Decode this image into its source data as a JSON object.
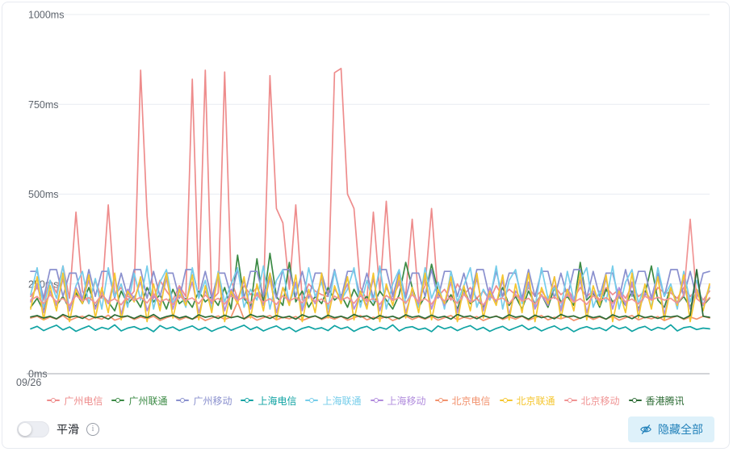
{
  "controls": {
    "smooth_label": "平滑",
    "smooth_on": false,
    "hide_all_label": "隐藏全部"
  },
  "icons": {
    "info_glyph": "i",
    "hide_icon": "eye-invisible-icon"
  },
  "button_colors": {
    "hide_all_bg": "#def1fa",
    "hide_all_text": "#2482ba"
  },
  "chart_data": {
    "type": "line",
    "title": "",
    "smooth": false,
    "grid": true,
    "legend_position": "bottom",
    "ylim": [
      0,
      1000
    ],
    "y_ticks": [
      {
        "label": "0ms",
        "value": 0
      },
      {
        "label": "250ms",
        "value": 250
      },
      {
        "label": "500ms",
        "value": 500
      },
      {
        "label": "750ms",
        "value": 750
      },
      {
        "label": "1000ms",
        "value": 1000
      }
    ],
    "x_first_tick_label": "09/26",
    "unit": "ms",
    "series": [
      {
        "key": "gz-telecom",
        "name": "广州电信",
        "color": "#ee8c8c",
        "values": [
          215,
          240,
          205,
          260,
          225,
          300,
          210,
          450,
          230,
          195,
          260,
          210,
          470,
          220,
          240,
          205,
          230,
          845,
          440,
          210,
          260,
          230,
          205,
          245,
          215,
          820,
          235,
          845,
          205,
          225,
          840,
          260,
          210,
          245,
          220,
          240,
          205,
          830,
          460,
          420,
          235,
          470,
          205,
          250,
          230,
          220,
          215,
          838,
          850,
          500,
          460,
          240,
          205,
          450,
          225,
          480,
          215,
          250,
          220,
          430,
          205,
          245,
          460,
          215,
          235,
          205,
          250,
          220,
          240,
          210,
          230,
          205,
          245,
          215,
          235,
          220,
          205,
          240,
          215,
          230,
          205,
          245,
          220,
          235,
          210,
          240,
          215,
          230,
          205,
          240,
          220,
          235,
          210,
          245,
          215,
          230,
          205,
          240,
          225,
          225,
          210,
          240,
          215,
          235,
          205,
          230
        ]
      },
      {
        "key": "gz-unicom",
        "name": "广州联通",
        "color": "#3b8a44",
        "values": [
          185,
          210,
          175,
          230,
          190,
          215,
          180,
          225,
          195,
          240,
          185,
          220,
          200,
          175,
          230,
          195,
          215,
          185,
          240,
          200,
          220,
          180,
          235,
          195,
          210,
          185,
          230,
          200,
          215,
          190,
          240,
          180,
          330,
          210,
          185,
          320,
          195,
          335,
          215,
          190,
          310,
          200,
          230,
          185,
          215,
          195,
          240,
          205,
          220,
          185,
          235,
          200,
          215,
          190,
          230,
          205,
          180,
          220,
          310,
          240,
          185,
          215,
          305,
          230,
          190,
          220,
          180,
          235,
          195,
          210,
          185,
          225,
          200,
          240,
          190,
          215,
          180,
          230,
          195,
          220,
          185,
          240,
          200,
          215,
          190,
          310,
          205,
          225,
          185,
          235,
          200,
          215,
          190,
          230,
          180,
          220,
          300,
          205,
          185,
          240,
          195,
          215,
          185,
          230,
          190,
          210
        ]
      },
      {
        "key": "gz-mobile",
        "name": "广州移动",
        "color": "#8a90ce",
        "values": [
          285,
          285,
          210,
          290,
          290,
          215,
          280,
          280,
          205,
          290,
          215,
          285,
          285,
          210,
          280,
          215,
          290,
          290,
          210,
          285,
          215,
          280,
          280,
          210,
          290,
          290,
          215,
          285,
          210,
          280,
          280,
          215,
          290,
          210,
          285,
          285,
          215,
          280,
          210,
          290,
          290,
          215,
          285,
          210,
          280,
          280,
          215,
          290,
          210,
          285,
          285,
          215,
          280,
          210,
          290,
          290,
          215,
          285,
          210,
          280,
          280,
          215,
          290,
          210,
          285,
          285,
          215,
          280,
          210,
          290,
          290,
          210,
          285,
          215,
          280,
          280,
          210,
          290,
          215,
          285,
          285,
          210,
          280,
          215,
          290,
          290,
          210,
          285,
          215,
          280,
          280,
          210,
          290,
          215,
          285,
          285,
          210,
          280,
          215,
          290,
          290,
          215,
          285,
          210,
          280,
          285
        ]
      },
      {
        "key": "sh-telecom",
        "name": "上海电信",
        "color": "#10a3a3",
        "values": [
          125,
          132,
          120,
          128,
          135,
          122,
          130,
          118,
          126,
          133,
          121,
          129,
          124,
          136,
          119,
          127,
          131,
          123,
          128,
          117,
          134,
          125,
          130,
          120,
          127,
          133,
          122,
          129,
          118,
          126,
          132,
          121,
          128,
          135,
          123,
          130,
          119,
          127,
          133,
          122,
          129,
          117,
          126,
          131,
          124,
          128,
          120,
          134,
          125,
          130,
          118,
          127,
          132,
          121,
          129,
          124,
          136,
          119,
          128,
          131,
          123,
          127,
          117,
          133,
          125,
          130,
          120,
          128,
          134,
          122,
          129,
          118,
          126,
          132,
          121,
          128,
          135,
          123,
          130,
          119,
          127,
          133,
          122,
          129,
          117,
          126,
          131,
          124,
          128,
          120,
          134,
          125,
          130,
          118,
          127,
          132,
          121,
          129,
          124,
          136,
          119,
          128,
          131,
          123,
          127,
          125
        ]
      },
      {
        "key": "sh-unicom",
        "name": "上海联通",
        "color": "#76cdea",
        "values": [
          220,
          295,
          185,
          260,
          210,
          300,
          175,
          245,
          285,
          195,
          265,
          180,
          295,
          215,
          250,
          185,
          280,
          205,
          300,
          180,
          255,
          290,
          195,
          230,
          185,
          295,
          210,
          260,
          180,
          285,
          200,
          250,
          295,
          185,
          235,
          205,
          300,
          180,
          260,
          290,
          195,
          245,
          185,
          295,
          215,
          255,
          180,
          285,
          205,
          235,
          295,
          185,
          260,
          200,
          300,
          180,
          250,
          290,
          195,
          230,
          185,
          295,
          210,
          255,
          180,
          285,
          200,
          245,
          295,
          185,
          235,
          205,
          300,
          180,
          260,
          290,
          195,
          250,
          185,
          295,
          210,
          240,
          180,
          285,
          205,
          260,
          295,
          185,
          230,
          200,
          300,
          180,
          255,
          290,
          195,
          245,
          185,
          295,
          215,
          250,
          180,
          285,
          200,
          260,
          190,
          240
        ]
      },
      {
        "key": "sh-mobile",
        "name": "上海移动",
        "color": "#b18cdd",
        "values": [
          200,
          250,
          170,
          230,
          190,
          265,
          175,
          240,
          205,
          260,
          180,
          225,
          195,
          270,
          165,
          235,
          210,
          255,
          175,
          220,
          190,
          265,
          180,
          240,
          200,
          255,
          170,
          230,
          195,
          270,
          175,
          235,
          205,
          260,
          180,
          225,
          190,
          265,
          170,
          240,
          200,
          255,
          175,
          230,
          195,
          270,
          165,
          235,
          210,
          250,
          180,
          220,
          190,
          265,
          175,
          240,
          205,
          260,
          170,
          230,
          195,
          270,
          180,
          235,
          190,
          255,
          170,
          225,
          200,
          265,
          175,
          240,
          195,
          260,
          165,
          230,
          205,
          255,
          180,
          220,
          190,
          270,
          175,
          235,
          200,
          260,
          170,
          230,
          195,
          265,
          180,
          240,
          190,
          255,
          175,
          225,
          205,
          270,
          165,
          235,
          195,
          260,
          180,
          230,
          190,
          245
        ]
      },
      {
        "key": "bj-telecom",
        "name": "北京电信",
        "color": "#f2926e",
        "values": [
          155,
          160,
          150,
          158,
          152,
          162,
          148,
          156,
          160,
          150,
          157,
          152,
          163,
          149,
          155,
          161,
          151,
          158,
          153,
          160,
          148,
          156,
          162,
          150,
          157,
          152,
          159,
          148,
          155,
          161,
          151,
          158,
          200,
          152,
          160,
          149,
          156,
          162,
          150,
          157,
          153,
          159,
          148,
          155,
          161,
          151,
          158,
          152,
          160,
          149,
          156,
          162,
          150,
          157,
          153,
          159,
          148,
          155,
          161,
          151,
          158,
          152,
          160,
          149,
          156,
          162,
          150,
          157,
          153,
          159,
          148,
          155,
          161,
          151,
          158,
          152,
          160,
          149,
          156,
          162,
          150,
          157,
          153,
          159,
          148,
          155,
          161,
          151,
          158,
          152,
          160,
          149,
          156,
          162,
          150,
          157,
          153,
          159,
          148,
          155,
          161,
          151,
          158,
          152,
          160,
          155
        ]
      },
      {
        "key": "bj-unicom",
        "name": "北京联通",
        "color": "#f5c62f",
        "values": [
          180,
          270,
          150,
          245,
          175,
          280,
          145,
          235,
          195,
          275,
          155,
          240,
          170,
          280,
          150,
          230,
          200,
          270,
          145,
          250,
          175,
          280,
          155,
          235,
          190,
          275,
          150,
          245,
          170,
          280,
          145,
          230,
          195,
          270,
          155,
          250,
          175,
          280,
          150,
          240,
          190,
          275,
          145,
          235,
          170,
          280,
          155,
          245,
          195,
          270,
          150,
          230,
          180,
          280,
          145,
          250,
          190,
          275,
          155,
          240,
          170,
          280,
          150,
          235,
          195,
          270,
          145,
          245,
          175,
          280,
          155,
          230,
          190,
          275,
          150,
          250,
          170,
          280,
          145,
          240,
          195,
          270,
          155,
          235,
          175,
          280,
          150,
          245,
          190,
          275,
          145,
          230,
          170,
          280,
          155,
          250,
          180,
          270,
          150,
          240,
          190,
          275,
          145,
          235,
          175,
          250
        ]
      },
      {
        "key": "bj-mobile",
        "name": "北京移动",
        "color": "#f09494",
        "values": [
          205,
          215,
          195,
          220,
          200,
          210,
          190,
          218,
          203,
          212,
          196,
          221,
          199,
          209,
          192,
          217,
          204,
          213,
          197,
          222,
          200,
          208,
          193,
          216,
          205,
          211,
          195,
          219,
          202,
          210,
          194,
          218,
          204,
          214,
          196,
          220,
          199,
          209,
          193,
          217,
          203,
          212,
          197,
          221,
          200,
          208,
          194,
          216,
          205,
          213,
          196,
          219,
          201,
          210,
          193,
          218,
          204,
          212,
          197,
          220,
          200,
          209,
          194,
          217,
          203,
          213,
          196,
          221,
          199,
          208,
          192,
          216,
          205,
          211,
          195,
          219,
          202,
          210,
          194,
          218,
          204,
          214,
          197,
          220,
          199,
          209,
          193,
          217,
          203,
          212,
          196,
          221,
          200,
          208,
          194,
          216,
          205,
          213,
          205,
          210,
          196,
          219,
          430,
          209,
          194,
          212
        ]
      },
      {
        "key": "hk-tencent",
        "name": "香港腾讯",
        "color": "#2c6b34",
        "values": [
          158,
          162,
          155,
          160,
          153,
          165,
          157,
          161,
          154,
          163,
          156,
          160,
          152,
          164,
          158,
          161,
          154,
          162,
          156,
          165,
          153,
          159,
          163,
          155,
          160,
          152,
          164,
          157,
          161,
          154,
          163,
          156,
          160,
          153,
          165,
          158,
          161,
          154,
          162,
          156,
          160,
          152,
          164,
          157,
          161,
          153,
          163,
          156,
          160,
          154,
          165,
          158,
          161,
          152,
          162,
          156,
          160,
          153,
          164,
          157,
          161,
          154,
          163,
          156,
          160,
          152,
          165,
          158,
          161,
          153,
          162,
          156,
          160,
          154,
          164,
          157,
          161,
          152,
          163,
          156,
          160,
          153,
          165,
          158,
          161,
          154,
          162,
          156,
          160,
          152,
          164,
          157,
          161,
          153,
          163,
          156,
          160,
          154,
          160,
          158,
          161,
          153,
          162,
          290,
          160,
          157
        ]
      }
    ],
    "axis_colors": {
      "grid_line": "#e8ecf2",
      "axis_line": "#a6aab1",
      "tick_label": "#60666e"
    }
  }
}
